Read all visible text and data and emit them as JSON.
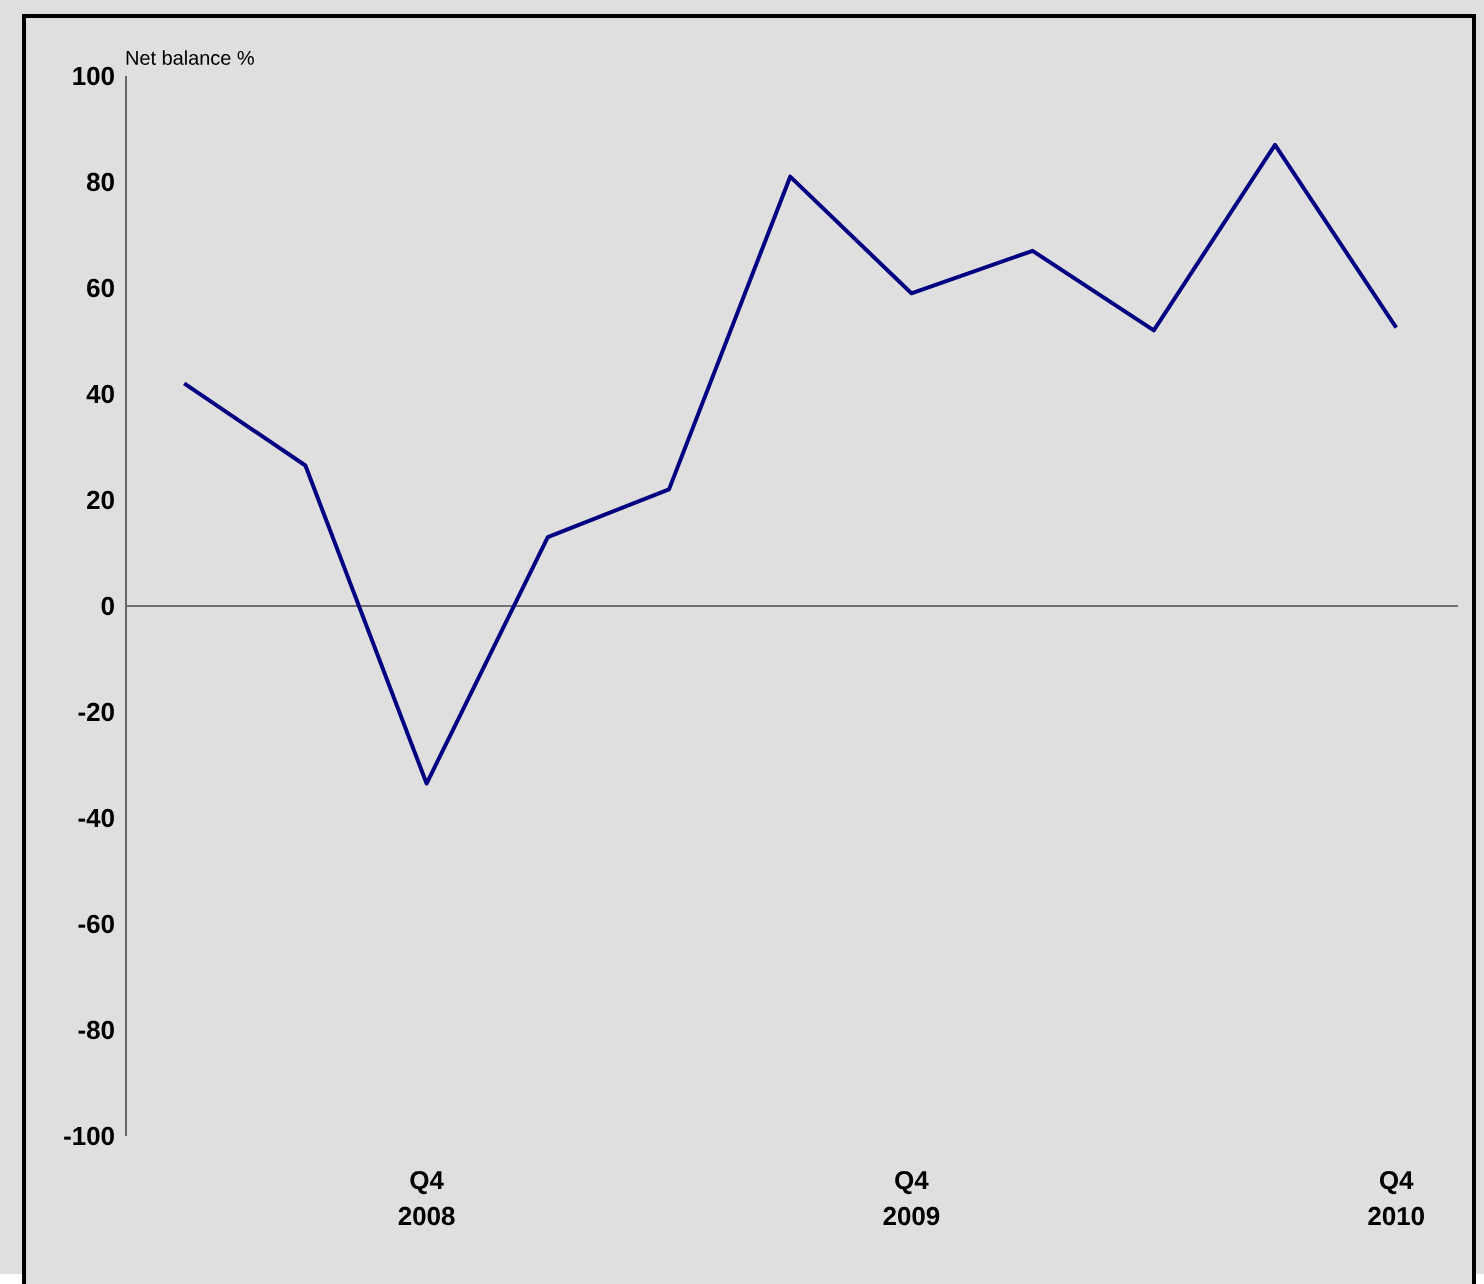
{
  "chart_data": {
    "type": "line",
    "ylabel": "Net balance %",
    "categories": [
      null,
      null,
      "Q4 2008",
      null,
      null,
      null,
      "Q4 2009",
      null,
      null,
      null,
      "Q4 2010"
    ],
    "series": [
      {
        "color": "#000080",
        "values": [
          42,
          26.5,
          -33.5,
          13,
          22,
          81,
          59,
          67,
          52,
          87,
          52.5
        ]
      }
    ],
    "ylim": [
      -100,
      100
    ],
    "yticks": [
      -100,
      -80,
      -60,
      -40,
      -20,
      0,
      20,
      40,
      60,
      80,
      100
    ],
    "ref_lines": [
      {
        "axis": "y",
        "value": 0,
        "color": "#707070"
      }
    ],
    "grid": false,
    "marker": "none",
    "line_style": "solid"
  }
}
